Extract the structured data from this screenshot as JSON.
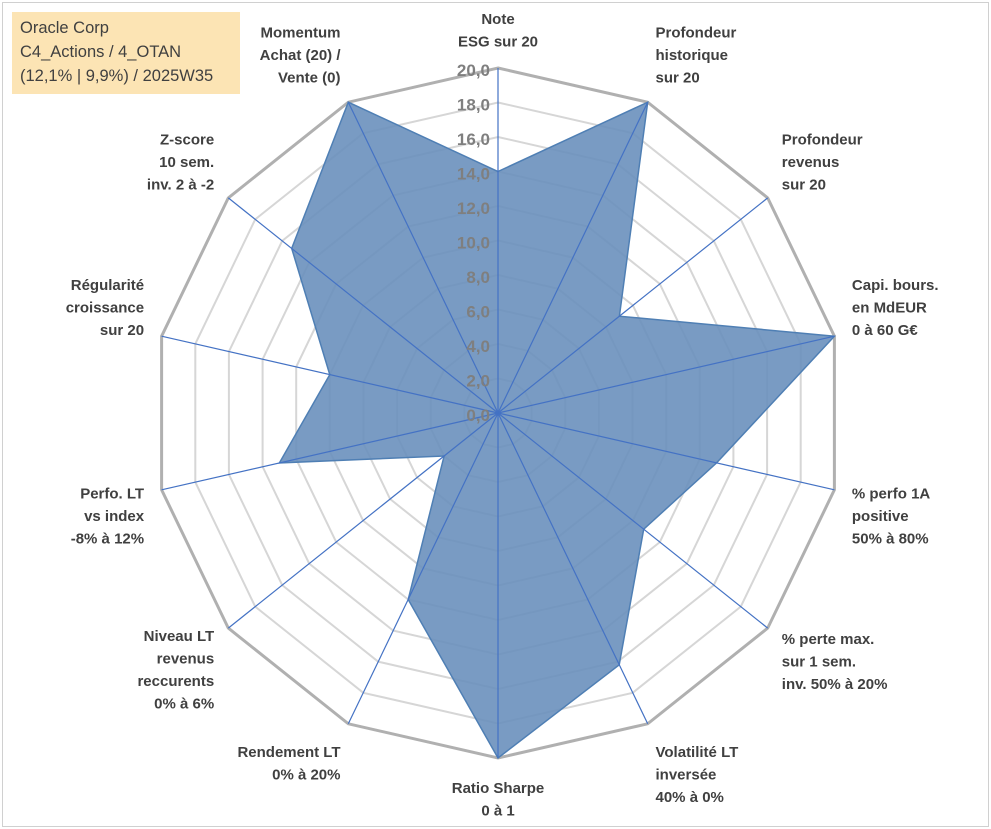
{
  "info": {
    "line1": "Oracle Corp",
    "line2": "C4_Actions / 4_OTAN",
    "line3": "(12,1% | 9,9%) / 2025W35"
  },
  "chart_data": {
    "type": "radar",
    "rmax": 20,
    "tick_step": 2,
    "tick_labels": [
      "0,0",
      "2,0",
      "4,0",
      "6,0",
      "8,0",
      "10,0",
      "12,0",
      "14,0",
      "16,0",
      "18,0",
      "20,0"
    ],
    "axes": [
      [
        "Note",
        "ESG sur 20"
      ],
      [
        "Profondeur",
        "historique",
        "sur 20"
      ],
      [
        "Profondeur",
        "revenus",
        "sur 20"
      ],
      [
        "Capi. bours.",
        "en MdEUR",
        "0 à 60 G€"
      ],
      [
        "% perfo 1A",
        "positive",
        "50% à 80%"
      ],
      [
        "% perte max.",
        "sur 1 sem.",
        "inv. 50% à 20%"
      ],
      [
        "Volatilité LT",
        "inversée",
        "40% à 0%"
      ],
      [
        "Ratio Sharpe",
        "0 à 1"
      ],
      [
        "Rendement LT",
        "0% à 20%"
      ],
      [
        "Niveau LT",
        "revenus",
        "reccurents",
        "0% à 6%"
      ],
      [
        "Perfo. LT",
        "vs index",
        "-8% à 12%"
      ],
      [
        "Régularité",
        "croissance",
        "sur 20"
      ],
      [
        "Z-score",
        "10 sem.",
        "inv. 2 à -2"
      ],
      [
        "Momentum",
        "Achat (20) /",
        "Vente (0)"
      ]
    ],
    "values": [
      14.0,
      20.0,
      9.0,
      20.0,
      13.0,
      10.8,
      16.2,
      20.0,
      12.0,
      4.0,
      13.0,
      10.0,
      15.3,
      20.0
    ],
    "series_color": "#4f7fb4",
    "fill_color": "#6a90bd",
    "grid_color": "#bfbfbf"
  }
}
